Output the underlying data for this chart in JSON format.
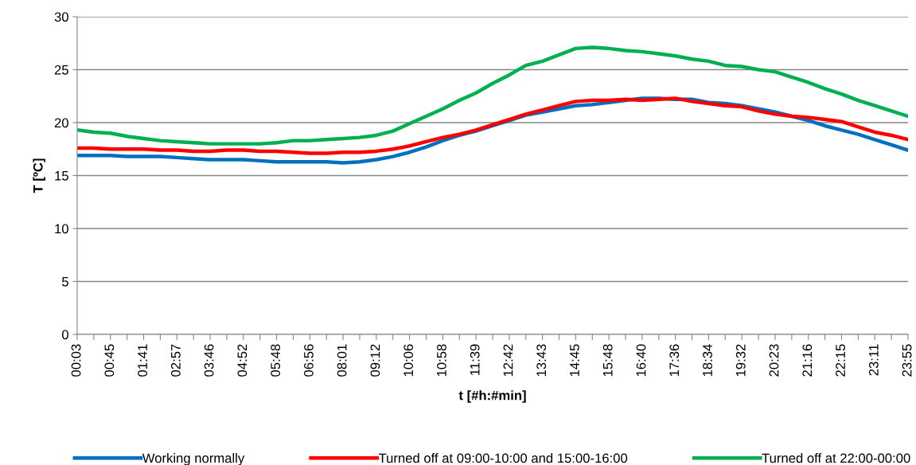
{
  "chart_data": {
    "type": "line",
    "xlabel": "t [#h:#min]",
    "ylabel": "T [ºC]",
    "categories": [
      "00:03",
      null,
      "00:45",
      null,
      "01:41",
      null,
      "02:57",
      null,
      "03:46",
      null,
      "04:52",
      null,
      "05:48",
      null,
      "06:56",
      null,
      "08:01",
      null,
      "09:12",
      null,
      "10:06",
      null,
      "10:58",
      null,
      "11:39",
      null,
      "12:42",
      null,
      "13:43",
      null,
      "14:45",
      null,
      "15:48",
      null,
      "16:40",
      null,
      "17:36",
      null,
      "18:34",
      null,
      "19:32",
      null,
      "20:23",
      null,
      "21:16",
      null,
      "22:15",
      null,
      "23:11",
      null,
      "23:55"
    ],
    "series": [
      {
        "name": "Working normally",
        "color": "#0070c0",
        "values": [
          16.9,
          16.9,
          16.9,
          16.8,
          16.8,
          16.8,
          16.7,
          16.6,
          16.5,
          16.5,
          16.5,
          16.4,
          16.3,
          16.3,
          16.3,
          16.3,
          16.2,
          16.3,
          16.5,
          16.8,
          17.2,
          17.7,
          18.3,
          18.8,
          19.2,
          19.7,
          20.2,
          20.7,
          21.0,
          21.3,
          21.6,
          21.7,
          21.9,
          22.1,
          22.3,
          22.3,
          22.2,
          22.2,
          21.9,
          21.8,
          21.6,
          21.3,
          21.0,
          20.6,
          20.2,
          19.7,
          19.3,
          18.9,
          18.4,
          17.9,
          17.4
        ]
      },
      {
        "name": "Turned off at 09:00-10:00 and 15:00-16:00",
        "color": "#ff0000",
        "values": [
          17.6,
          17.6,
          17.5,
          17.5,
          17.5,
          17.4,
          17.4,
          17.3,
          17.3,
          17.4,
          17.4,
          17.3,
          17.3,
          17.2,
          17.1,
          17.1,
          17.2,
          17.2,
          17.3,
          17.5,
          17.8,
          18.2,
          18.6,
          18.9,
          19.3,
          19.8,
          20.3,
          20.8,
          21.2,
          21.6,
          22.0,
          22.1,
          22.1,
          22.2,
          22.1,
          22.2,
          22.3,
          22.0,
          21.8,
          21.6,
          21.5,
          21.1,
          20.8,
          20.6,
          20.5,
          20.3,
          20.1,
          19.6,
          19.1,
          18.8,
          18.4
        ]
      },
      {
        "name": "Turned off at 22:00-00:00",
        "color": "#00b050",
        "values": [
          19.3,
          19.1,
          19.0,
          18.7,
          18.5,
          18.3,
          18.2,
          18.1,
          18.0,
          18.0,
          18.0,
          18.0,
          18.1,
          18.3,
          18.3,
          18.4,
          18.5,
          18.6,
          18.8,
          19.2,
          19.9,
          20.6,
          21.3,
          22.1,
          22.8,
          23.7,
          24.5,
          25.4,
          25.8,
          26.4,
          27.0,
          27.1,
          27.0,
          26.8,
          26.7,
          26.5,
          26.3,
          26.0,
          25.8,
          25.4,
          25.3,
          25.0,
          24.8,
          24.3,
          23.8,
          23.2,
          22.7,
          22.1,
          21.6,
          21.1,
          20.6
        ]
      }
    ],
    "ylim": [
      0,
      30
    ],
    "yticks": [
      0,
      5,
      10,
      15,
      20,
      25,
      30
    ],
    "grid": "y",
    "legend": "bottom",
    "marker": "none",
    "line_style": "solid"
  }
}
